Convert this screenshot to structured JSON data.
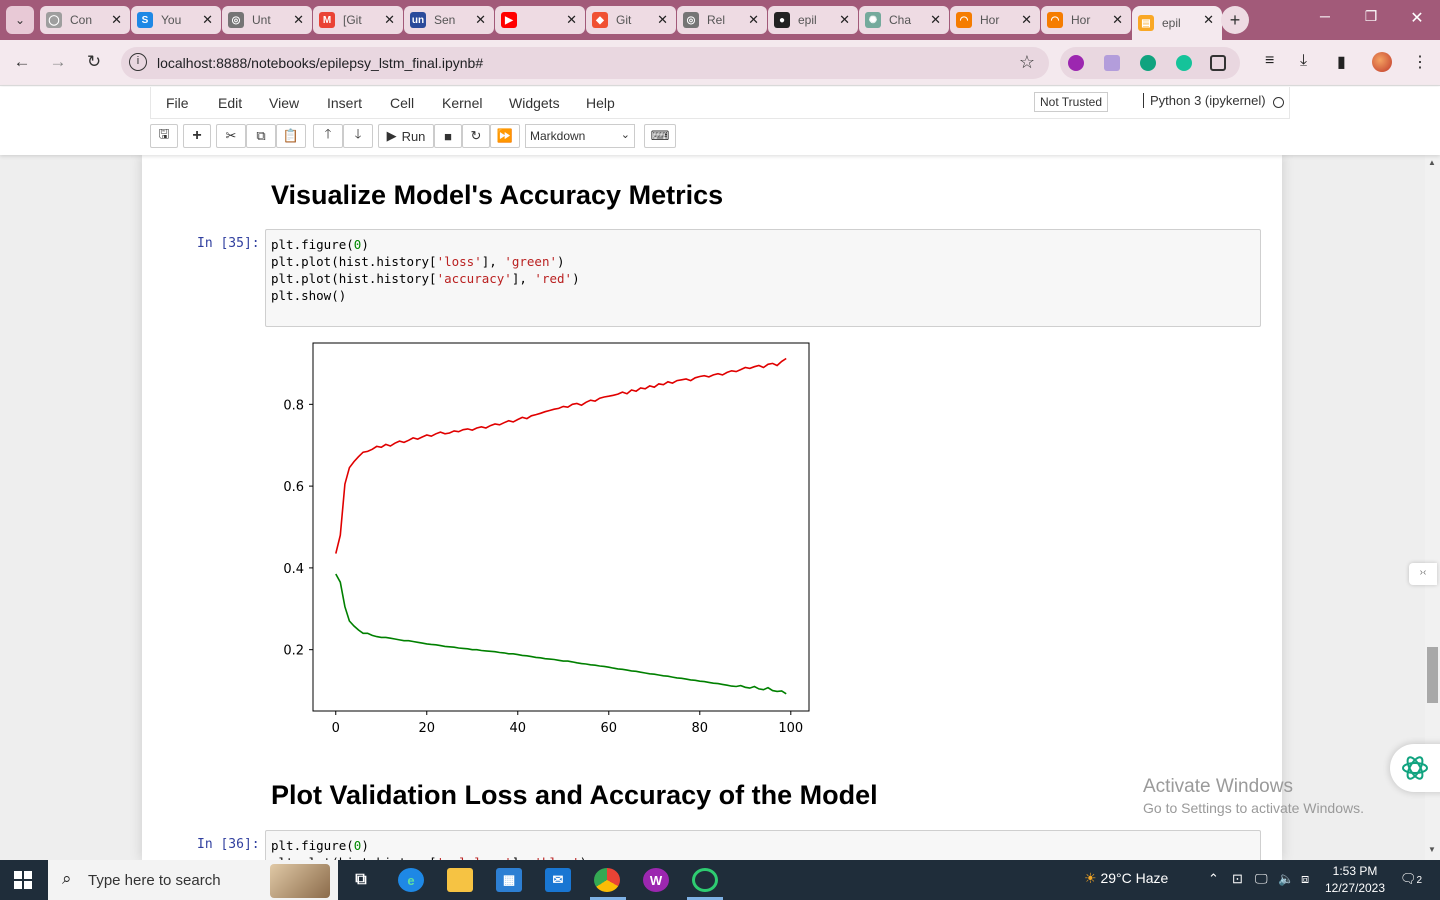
{
  "browser": {
    "tabs": [
      {
        "title": "Con",
        "favicon_color": "#9e9e9e",
        "favicon_glyph": "◯"
      },
      {
        "title": "You",
        "favicon_color": "#1e88e5",
        "favicon_glyph": "S"
      },
      {
        "title": "Unt",
        "favicon_color": "#757575",
        "favicon_glyph": "◎"
      },
      {
        "title": "[Git",
        "favicon_color": "#ea4335",
        "favicon_glyph": "M"
      },
      {
        "title": "Sen",
        "favicon_color": "#2b4b9b",
        "favicon_glyph": "un"
      },
      {
        "title": "",
        "favicon_color": "#ff0000",
        "favicon_glyph": "▶"
      },
      {
        "title": "Git",
        "favicon_color": "#f05133",
        "favicon_glyph": "◆"
      },
      {
        "title": "Rel",
        "favicon_color": "#757575",
        "favicon_glyph": "◎"
      },
      {
        "title": "epil",
        "favicon_color": "#222222",
        "favicon_glyph": "●"
      },
      {
        "title": "Cha",
        "favicon_color": "#74aa9c",
        "favicon_glyph": "✺"
      },
      {
        "title": "Hor",
        "favicon_color": "#f57c00",
        "favicon_glyph": "◠"
      },
      {
        "title": "Hor",
        "favicon_color": "#f57c00",
        "favicon_glyph": "◠"
      },
      {
        "title": "epil",
        "favicon_color": "#f9a825",
        "favicon_glyph": "▤"
      }
    ],
    "url": "localhost:8888/notebooks/epilepsy_lstm_final.ipynb#"
  },
  "jupyter": {
    "menus": [
      "File",
      "Edit",
      "View",
      "Insert",
      "Cell",
      "Kernel",
      "Widgets",
      "Help"
    ],
    "trust_status": "Not Trusted",
    "kernel": "Python 3 (ipykernel)",
    "run_label": "Run",
    "cell_type": "Markdown"
  },
  "notebook": {
    "heading1": "Visualize Model's Accuracy Metrics",
    "cell35": {
      "prompt": "In [35]:",
      "code": [
        "plt.figure(0)",
        "plt.plot(hist.history['loss'], 'green')",
        "plt.plot(hist.history['accuracy'], 'red')",
        "plt.show()"
      ]
    },
    "heading2": "Plot Validation Loss and Accuracy of the Model",
    "cell36": {
      "prompt": "In [36]:",
      "code": [
        "plt.figure(0)",
        "plt.plot(hist.history['val_loss'], 'blue')"
      ]
    }
  },
  "chart_data": {
    "type": "line",
    "x": {
      "start": 0,
      "end": 99,
      "step": 1
    },
    "xlim": [
      -5,
      104
    ],
    "ylim": [
      0.05,
      0.95
    ],
    "xticks": [
      0,
      20,
      40,
      60,
      80,
      100
    ],
    "yticks": [
      0.2,
      0.4,
      0.6,
      0.8
    ],
    "series": [
      {
        "color": "#e00000",
        "values": [
          0.435,
          0.48,
          0.605,
          0.645,
          0.66,
          0.672,
          0.683,
          0.685,
          0.69,
          0.697,
          0.695,
          0.702,
          0.698,
          0.705,
          0.71,
          0.707,
          0.712,
          0.718,
          0.715,
          0.72,
          0.725,
          0.722,
          0.728,
          0.732,
          0.728,
          0.73,
          0.735,
          0.733,
          0.738,
          0.74,
          0.737,
          0.742,
          0.745,
          0.742,
          0.748,
          0.752,
          0.75,
          0.755,
          0.76,
          0.757,
          0.763,
          0.768,
          0.765,
          0.772,
          0.775,
          0.778,
          0.782,
          0.785,
          0.788,
          0.79,
          0.795,
          0.793,
          0.8,
          0.802,
          0.798,
          0.805,
          0.81,
          0.808,
          0.815,
          0.818,
          0.82,
          0.822,
          0.825,
          0.83,
          0.826,
          0.835,
          0.832,
          0.84,
          0.838,
          0.845,
          0.842,
          0.85,
          0.848,
          0.855,
          0.852,
          0.858,
          0.86,
          0.862,
          0.858,
          0.865,
          0.868,
          0.87,
          0.867,
          0.872,
          0.875,
          0.872,
          0.878,
          0.882,
          0.88,
          0.885,
          0.89,
          0.888,
          0.892,
          0.895,
          0.89,
          0.898,
          0.9,
          0.895,
          0.905,
          0.912
        ]
      },
      {
        "color": "#008000",
        "values": [
          0.385,
          0.365,
          0.305,
          0.27,
          0.258,
          0.248,
          0.24,
          0.24,
          0.235,
          0.232,
          0.23,
          0.23,
          0.228,
          0.226,
          0.224,
          0.222,
          0.222,
          0.22,
          0.218,
          0.216,
          0.214,
          0.213,
          0.212,
          0.21,
          0.208,
          0.207,
          0.206,
          0.204,
          0.203,
          0.202,
          0.2,
          0.2,
          0.198,
          0.197,
          0.196,
          0.195,
          0.193,
          0.192,
          0.19,
          0.19,
          0.188,
          0.186,
          0.185,
          0.183,
          0.181,
          0.18,
          0.178,
          0.177,
          0.176,
          0.174,
          0.172,
          0.172,
          0.17,
          0.168,
          0.166,
          0.165,
          0.163,
          0.162,
          0.16,
          0.159,
          0.157,
          0.155,
          0.153,
          0.152,
          0.15,
          0.148,
          0.147,
          0.145,
          0.143,
          0.141,
          0.14,
          0.138,
          0.136,
          0.135,
          0.133,
          0.131,
          0.13,
          0.128,
          0.126,
          0.125,
          0.123,
          0.122,
          0.12,
          0.118,
          0.117,
          0.115,
          0.113,
          0.111,
          0.11,
          0.112,
          0.108,
          0.106,
          0.11,
          0.104,
          0.102,
          0.107,
          0.1,
          0.098,
          0.099,
          0.092
        ]
      }
    ]
  },
  "windows": {
    "activate_title": "Activate Windows",
    "activate_sub": "Go to Settings to activate Windows.",
    "search_placeholder": "Type here to search",
    "weather": "29°C  Haze",
    "time": "1:53 PM",
    "date": "12/27/2023",
    "notification_count": "2"
  }
}
